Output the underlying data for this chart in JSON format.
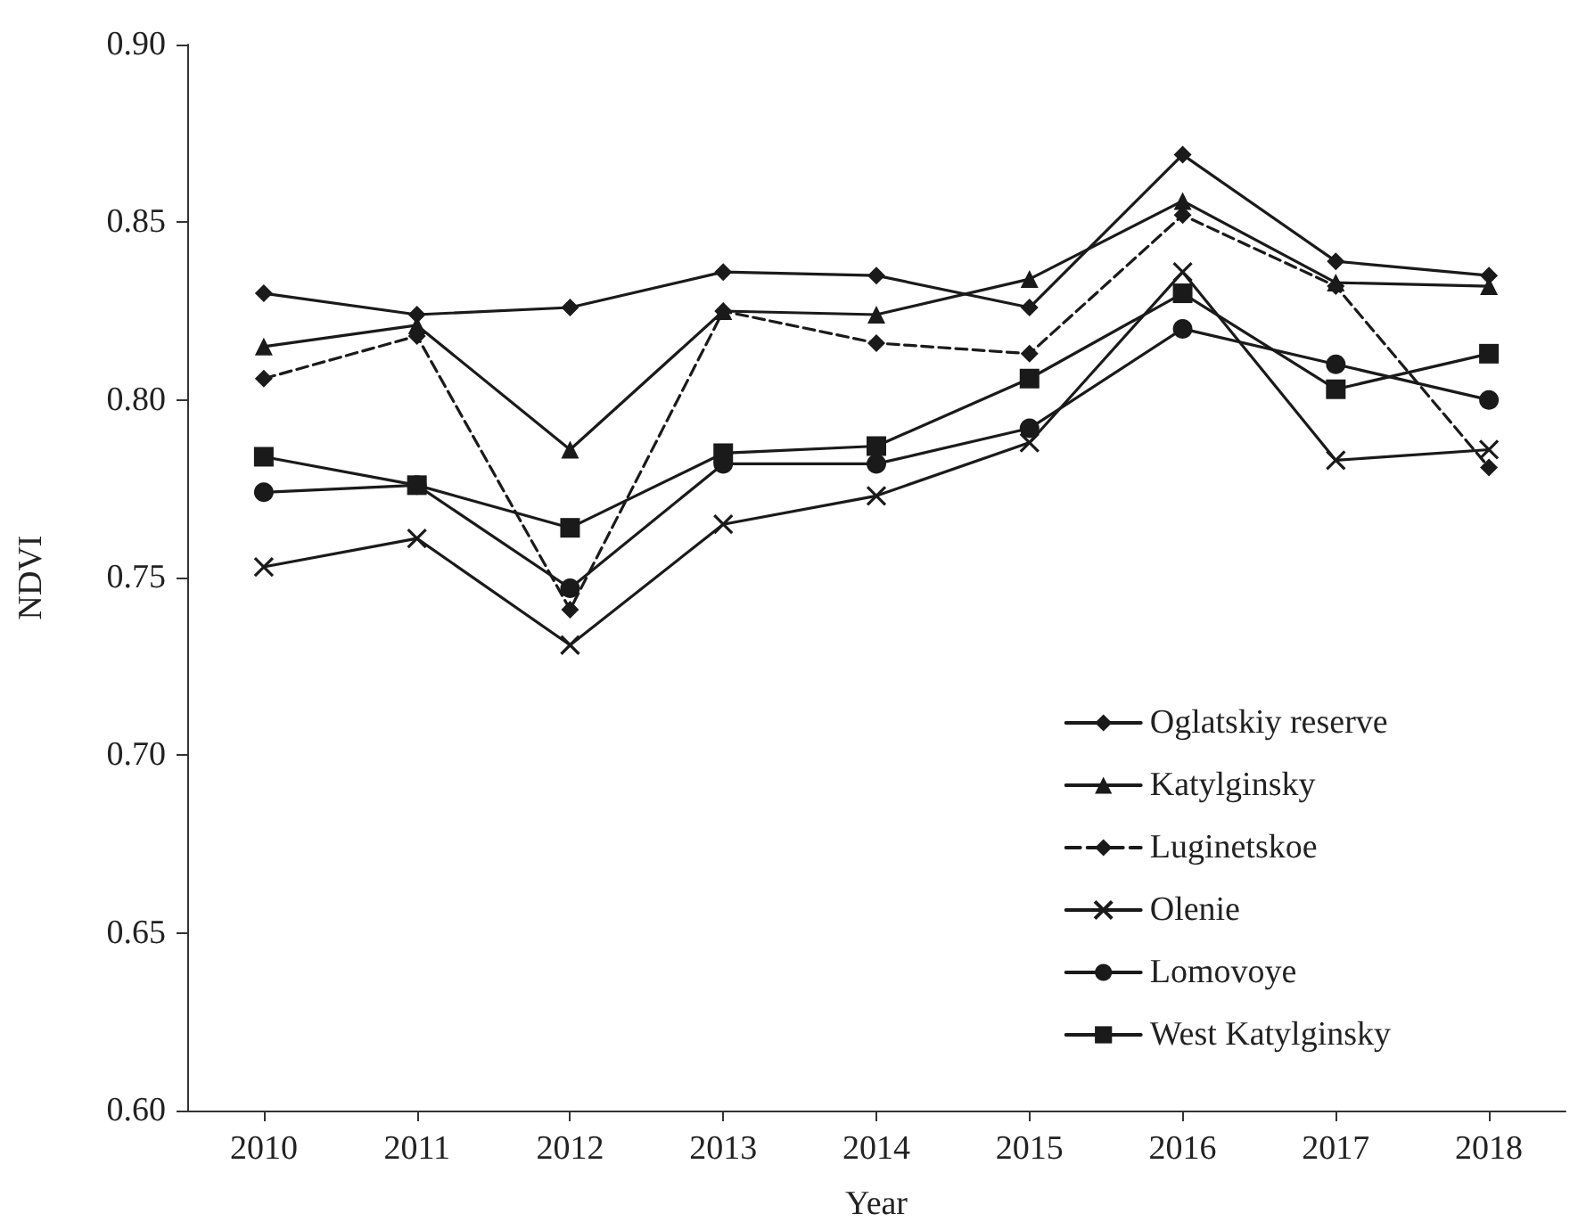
{
  "chart_data": {
    "type": "line",
    "xlabel": "Year",
    "ylabel": "NDVI",
    "categories": [
      "2010",
      "2011",
      "2012",
      "2013",
      "2014",
      "2015",
      "2016",
      "2017",
      "2018"
    ],
    "ylim": [
      0.6,
      0.9
    ],
    "yticks": [
      {
        "value": 0.6,
        "label": "0.60"
      },
      {
        "value": 0.65,
        "label": "0.65"
      },
      {
        "value": 0.7,
        "label": "0.70"
      },
      {
        "value": 0.75,
        "label": "0.75"
      },
      {
        "value": 0.8,
        "label": "0.80"
      },
      {
        "value": 0.85,
        "label": "0.85"
      },
      {
        "value": 0.9,
        "label": "0.90"
      }
    ],
    "grid": false,
    "legend": "bottom right",
    "series": [
      {
        "name": "Oglatskiy reserve",
        "color": "#1a1a1a",
        "marker": "diamond",
        "line_style": "solid",
        "values": [
          0.83,
          0.824,
          0.826,
          0.836,
          0.835,
          0.826,
          0.869,
          0.839,
          0.835
        ]
      },
      {
        "name": "Katylginsky",
        "color": "#1a1a1a",
        "marker": "triangle",
        "line_style": "solid",
        "values": [
          0.815,
          0.821,
          0.786,
          0.825,
          0.824,
          0.834,
          0.856,
          0.833,
          0.832
        ]
      },
      {
        "name": "Luginetskoe",
        "color": "#1a1a1a",
        "marker": "diamond",
        "line_style": "dashed",
        "values": [
          0.806,
          0.818,
          0.741,
          0.825,
          0.816,
          0.813,
          0.852,
          0.832,
          0.781
        ]
      },
      {
        "name": "Olenie",
        "color": "#1a1a1a",
        "marker": "cross",
        "line_style": "solid",
        "values": [
          0.753,
          0.761,
          0.731,
          0.765,
          0.773,
          0.788,
          0.836,
          0.783,
          0.786
        ]
      },
      {
        "name": "Lomovoye",
        "color": "#1a1a1a",
        "marker": "circle",
        "line_style": "solid",
        "values": [
          0.774,
          0.776,
          0.747,
          0.782,
          0.782,
          0.792,
          0.82,
          0.81,
          0.8
        ]
      },
      {
        "name": "West Katylginsky",
        "color": "#1a1a1a",
        "marker": "square",
        "line_style": "solid",
        "values": [
          0.784,
          0.776,
          0.764,
          0.785,
          0.787,
          0.806,
          0.83,
          0.803,
          0.813
        ]
      }
    ]
  }
}
